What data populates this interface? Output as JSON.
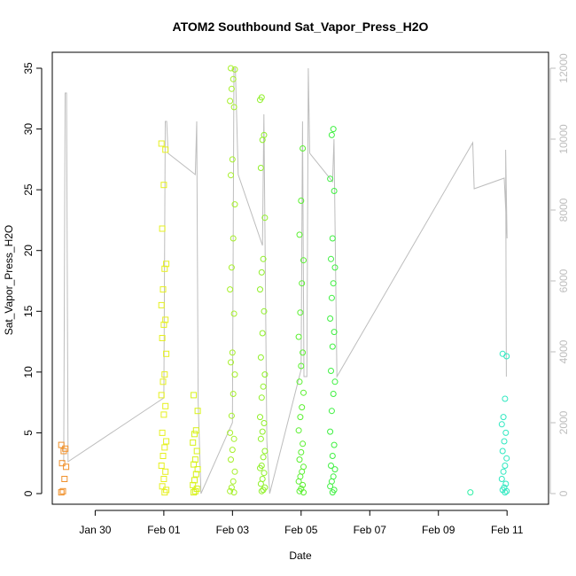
{
  "chart_data": {
    "type": "scatter",
    "title": "ATOM2 Southbound Sat_Vapor_Press_H2O",
    "xlabel": "Date",
    "ylabel": "Sat_Vapor_Press_H2O",
    "xlim": [
      "2017-01-28T18:00",
      "2017-02-12T05:00"
    ],
    "ylim": [
      0,
      35
    ],
    "y_ticks": [
      0,
      5,
      10,
      15,
      20,
      25,
      30,
      35
    ],
    "y2lim": [
      0,
      12000
    ],
    "y2_ticks": [
      0,
      2000,
      4000,
      6000,
      8000,
      10000,
      12000
    ],
    "x_ticks": [
      {
        "date": "2017-01-30",
        "label": "Jan 30"
      },
      {
        "date": "2017-02-01",
        "label": "Feb 01"
      },
      {
        "date": "2017-02-03",
        "label": "Feb 03"
      },
      {
        "date": "2017-02-05",
        "label": "Feb 05"
      },
      {
        "date": "2017-02-07",
        "label": "Feb 07"
      },
      {
        "date": "2017-02-09",
        "label": "Feb 09"
      },
      {
        "date": "2017-02-11",
        "label": "Feb 11"
      }
    ],
    "secondary_series_color": "#bdbdbd",
    "clusters": [
      {
        "date": "2017-01-29T02:00",
        "color": "#f0902a",
        "marker": "square",
        "values": [
          0.1,
          0.2,
          1.2,
          2.2,
          2.5,
          3.5,
          3.7,
          4.0
        ]
      },
      {
        "date": "2017-02-01T00:00",
        "color": "#e6f020",
        "marker": "square",
        "values": [
          0.1,
          0.3,
          0.6,
          1.2,
          1.8,
          2.3,
          3.1,
          3.8,
          4.3,
          5.0,
          6.5,
          7.2,
          8.1,
          9.2,
          9.8,
          11.5,
          12.8,
          13.9,
          14.3,
          15.5,
          16.8,
          18.5,
          18.9,
          21.8,
          25.4,
          28.3,
          28.8
        ]
      },
      {
        "date": "2017-02-01T22:00",
        "color": "#d8f21a",
        "marker": "square",
        "values": [
          0.1,
          0.2,
          0.4,
          0.7,
          1.1,
          1.6,
          2.0,
          2.4,
          2.8,
          3.5,
          4.2,
          4.9,
          5.2,
          6.8,
          8.1
        ]
      },
      {
        "date": "2017-02-03T00:00",
        "color": "#a6f02a",
        "marker": "circle",
        "values": [
          0.1,
          0.2,
          0.5,
          1.0,
          1.8,
          2.8,
          3.6,
          4.5,
          5.0,
          6.4,
          8.2,
          9.8,
          10.8,
          11.6,
          14.8,
          16.8,
          18.6,
          21.0,
          23.8,
          26.2,
          27.5,
          31.8,
          32.3,
          33.3,
          34.1,
          34.9,
          35.0
        ]
      },
      {
        "date": "2017-02-03T21:00",
        "color": "#8ff028",
        "marker": "circle",
        "values": [
          0.2,
          0.3,
          0.5,
          0.8,
          1.2,
          1.7,
          2.1,
          2.3,
          3.0,
          3.5,
          4.5,
          5.1,
          5.8,
          6.3,
          7.9,
          8.8,
          9.8,
          11.2,
          13.2,
          15.0,
          16.8,
          18.2,
          19.3,
          22.7,
          26.8,
          29.1,
          29.5,
          32.4,
          32.6
        ]
      },
      {
        "date": "2017-02-05T00:00",
        "color": "#5af030",
        "marker": "circle",
        "values": [
          0.1,
          0.2,
          0.4,
          0.7,
          1.0,
          1.4,
          1.8,
          2.2,
          2.8,
          3.4,
          4.1,
          5.2,
          6.3,
          7.1,
          8.3,
          9.2,
          10.5,
          11.6,
          12.9,
          14.9,
          17.3,
          19.2,
          21.3,
          24.1,
          28.4
        ]
      },
      {
        "date": "2017-02-05T22:00",
        "color": "#3ef040",
        "marker": "circle",
        "values": [
          0.1,
          0.3,
          0.6,
          1.0,
          1.4,
          2.0,
          2.3,
          3.1,
          4.0,
          5.1,
          6.8,
          8.2,
          9.2,
          10.1,
          12.1,
          13.3,
          14.4,
          16.1,
          17.3,
          18.6,
          19.3,
          21.0,
          24.9,
          25.9,
          29.5,
          30.0
        ]
      },
      {
        "date": "2017-02-10T00:00",
        "color": "#2ef0a6",
        "marker": "circle",
        "values": [
          0.1
        ]
      },
      {
        "date": "2017-02-10T22:00",
        "color": "#2ee8c0",
        "marker": "circle",
        "values": [
          0.1,
          0.2,
          0.3,
          0.5,
          0.8,
          1.2,
          1.8,
          2.3,
          2.9,
          3.5,
          4.3,
          5.0,
          5.7,
          6.3,
          7.8,
          11.3,
          11.5
        ]
      }
    ],
    "secondary_line": [
      {
        "d": "2017-01-29T02:00",
        "v": 900
      },
      {
        "d": "2017-01-29T03:00",
        "v": 11300
      },
      {
        "d": "2017-01-29T04:00",
        "v": 11300
      },
      {
        "d": "2017-01-29T05:00",
        "v": 900
      },
      {
        "d": "2017-02-01T00:00",
        "v": 2700
      },
      {
        "d": "2017-02-01T01:00",
        "v": 10500
      },
      {
        "d": "2017-02-01T02:00",
        "v": 10500
      },
      {
        "d": "2017-02-01T03:00",
        "v": 9600
      },
      {
        "d": "2017-02-01T22:00",
        "v": 9000
      },
      {
        "d": "2017-02-01T23:00",
        "v": 10500
      },
      {
        "d": "2017-02-02T00:00",
        "v": 2600
      },
      {
        "d": "2017-02-02T02:00",
        "v": 0
      },
      {
        "d": "2017-02-03T00:00",
        "v": 2000
      },
      {
        "d": "2017-02-03T01:00",
        "v": 12000
      },
      {
        "d": "2017-02-03T02:00",
        "v": 12000
      },
      {
        "d": "2017-02-03T04:00",
        "v": 9000
      },
      {
        "d": "2017-02-03T21:00",
        "v": 7000
      },
      {
        "d": "2017-02-03T22:00",
        "v": 10700
      },
      {
        "d": "2017-02-04T00:00",
        "v": 1500
      },
      {
        "d": "2017-02-04T02:00",
        "v": 0
      },
      {
        "d": "2017-02-05T00:00",
        "v": 3500
      },
      {
        "d": "2017-02-05T01:00",
        "v": 10500
      },
      {
        "d": "2017-02-05T02:00",
        "v": 3300
      },
      {
        "d": "2017-02-05T04:00",
        "v": 3300
      },
      {
        "d": "2017-02-05T05:00",
        "v": 12000
      },
      {
        "d": "2017-02-05T06:00",
        "v": 9600
      },
      {
        "d": "2017-02-05T22:00",
        "v": 8800
      },
      {
        "d": "2017-02-05T23:00",
        "v": 10000
      },
      {
        "d": "2017-02-06T01:00",
        "v": 3300
      },
      {
        "d": "2017-02-10T00:00",
        "v": 9900
      },
      {
        "d": "2017-02-10T01:00",
        "v": 8600
      },
      {
        "d": "2017-02-10T22:00",
        "v": 8900
      },
      {
        "d": "2017-02-11T00:00",
        "v": 7200
      },
      {
        "d": "2017-02-10T23:00",
        "v": 9700
      },
      {
        "d": "2017-02-10T23:30",
        "v": 3300
      }
    ]
  }
}
